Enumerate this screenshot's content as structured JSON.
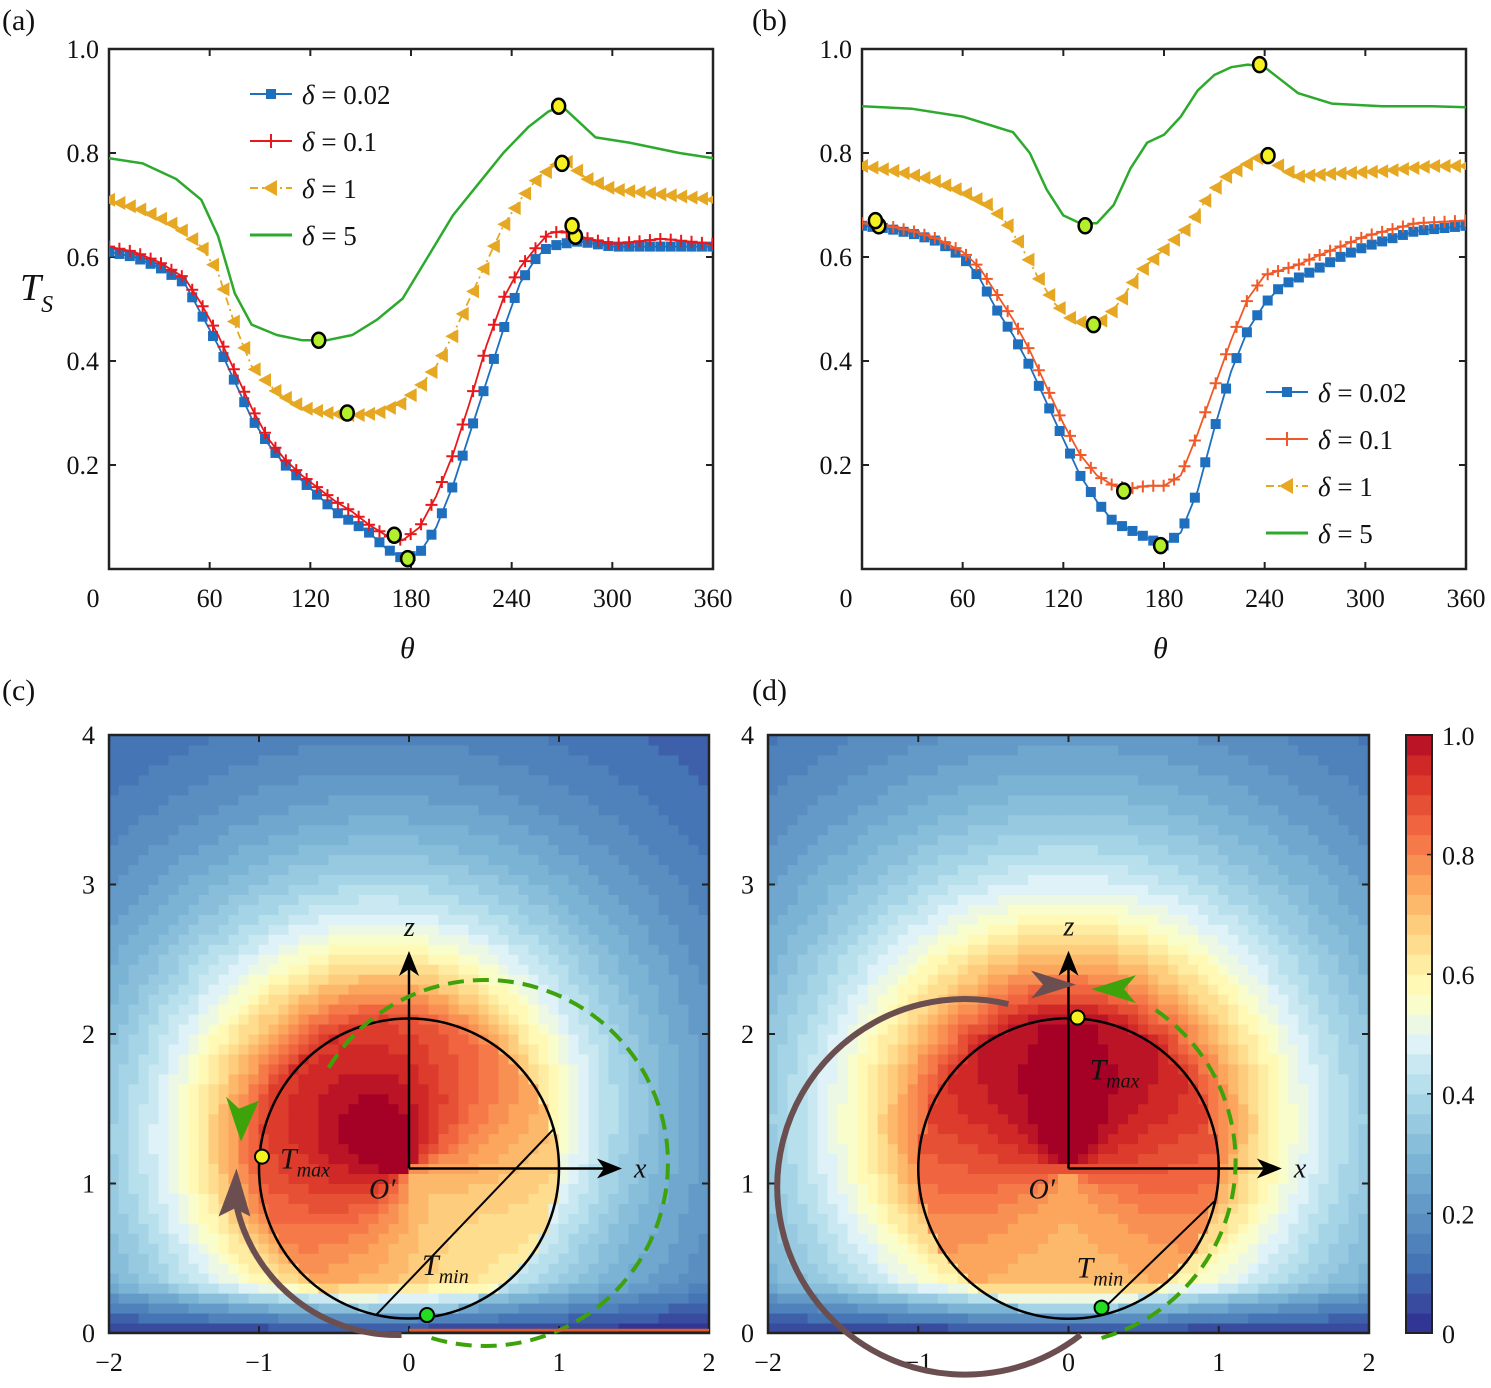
{
  "chart_data": [
    {
      "panel": "(a)",
      "type": "line",
      "xlabel": "θ",
      "ylabel": "T_S",
      "xlim": [
        0,
        360
      ],
      "ylim": [
        0,
        1.0
      ],
      "xticks": [
        "0",
        "60",
        "120",
        "180",
        "240",
        "300",
        "360"
      ],
      "yticks": [
        "0.2",
        "0.4",
        "0.6",
        "0.8",
        "1.0"
      ],
      "legend_position": "top-left",
      "series": [
        {
          "name": "δ = 0.02",
          "color": "#1f6fbf",
          "marker": "square",
          "style": "solid",
          "x": [
            0,
            15,
            30,
            45,
            55,
            65,
            75,
            85,
            95,
            105,
            115,
            125,
            135,
            145,
            155,
            165,
            175,
            185,
            195,
            205,
            215,
            225,
            235,
            245,
            255,
            262,
            270,
            280,
            300,
            330,
            360
          ],
          "y": [
            0.61,
            0.6,
            0.58,
            0.55,
            0.49,
            0.43,
            0.36,
            0.29,
            0.24,
            0.2,
            0.17,
            0.14,
            0.11,
            0.09,
            0.07,
            0.04,
            0.02,
            0.03,
            0.08,
            0.16,
            0.26,
            0.36,
            0.46,
            0.55,
            0.6,
            0.62,
            0.625,
            0.63,
            0.62,
            0.62,
            0.62
          ],
          "highlight": [
            {
              "x": 178,
              "y": 0.02
            },
            {
              "x": 278,
              "y": 0.64
            }
          ]
        },
        {
          "name": "δ = 0.1",
          "color": "#e8191c",
          "marker": "plus",
          "style": "solid",
          "x": [
            0,
            15,
            30,
            45,
            55,
            65,
            75,
            85,
            95,
            105,
            115,
            125,
            135,
            145,
            155,
            165,
            175,
            185,
            195,
            205,
            215,
            225,
            235,
            245,
            255,
            262,
            270,
            280,
            300,
            330,
            360
          ],
          "y": [
            0.62,
            0.61,
            0.59,
            0.56,
            0.51,
            0.45,
            0.38,
            0.31,
            0.25,
            0.21,
            0.18,
            0.155,
            0.13,
            0.11,
            0.085,
            0.065,
            0.055,
            0.08,
            0.14,
            0.22,
            0.32,
            0.43,
            0.52,
            0.58,
            0.62,
            0.645,
            0.65,
            0.64,
            0.625,
            0.635,
            0.625
          ],
          "highlight": [
            {
              "x": 170,
              "y": 0.065
            },
            {
              "x": 276,
              "y": 0.66
            }
          ]
        },
        {
          "name": "δ = 1",
          "color": "#e6a823",
          "marker": "triangle-left",
          "style": "dashdot",
          "x": [
            0,
            20,
            40,
            55,
            65,
            75,
            85,
            100,
            115,
            130,
            145,
            160,
            175,
            185,
            195,
            205,
            215,
            225,
            235,
            245,
            255,
            265,
            272,
            285,
            300,
            330,
            360
          ],
          "y": [
            0.71,
            0.69,
            0.66,
            0.62,
            0.57,
            0.47,
            0.39,
            0.34,
            0.31,
            0.3,
            0.295,
            0.3,
            0.32,
            0.35,
            0.39,
            0.45,
            0.52,
            0.59,
            0.66,
            0.71,
            0.75,
            0.775,
            0.785,
            0.75,
            0.73,
            0.72,
            0.71
          ],
          "highlight": [
            {
              "x": 142,
              "y": 0.3
            },
            {
              "x": 270,
              "y": 0.78
            }
          ]
        },
        {
          "name": "δ = 5",
          "color": "#2daa2d",
          "marker": "none",
          "style": "solid",
          "x": [
            0,
            20,
            40,
            55,
            65,
            75,
            85,
            100,
            115,
            130,
            145,
            160,
            175,
            190,
            205,
            220,
            235,
            250,
            262,
            270,
            280,
            290,
            310,
            340,
            360
          ],
          "y": [
            0.79,
            0.78,
            0.75,
            0.71,
            0.64,
            0.53,
            0.47,
            0.45,
            0.44,
            0.44,
            0.45,
            0.48,
            0.52,
            0.6,
            0.68,
            0.74,
            0.8,
            0.85,
            0.88,
            0.89,
            0.86,
            0.83,
            0.82,
            0.8,
            0.79
          ],
          "highlight": [
            {
              "x": 125,
              "y": 0.44
            },
            {
              "x": 268,
              "y": 0.89
            }
          ]
        }
      ]
    },
    {
      "panel": "(b)",
      "type": "line",
      "xlabel": "θ",
      "xlim": [
        0,
        360
      ],
      "ylim": [
        0,
        1.0
      ],
      "xticks": [
        "0",
        "60",
        "120",
        "180",
        "240",
        "300",
        "360"
      ],
      "yticks": [
        "0.2",
        "0.4",
        "0.6",
        "0.8",
        "1.0"
      ],
      "legend_position": "bottom-right",
      "series": [
        {
          "name": "δ = 0.02",
          "color": "#1f6fbf",
          "marker": "square",
          "style": "solid",
          "x": [
            0,
            15,
            30,
            45,
            60,
            70,
            80,
            90,
            100,
            110,
            120,
            130,
            140,
            150,
            160,
            170,
            180,
            190,
            200,
            210,
            220,
            230,
            240,
            250,
            260,
            270,
            285,
            300,
            330,
            360
          ],
          "y": [
            0.66,
            0.655,
            0.645,
            0.63,
            0.6,
            0.56,
            0.5,
            0.45,
            0.39,
            0.32,
            0.25,
            0.18,
            0.13,
            0.09,
            0.075,
            0.06,
            0.045,
            0.07,
            0.15,
            0.27,
            0.38,
            0.46,
            0.51,
            0.545,
            0.56,
            0.575,
            0.6,
            0.62,
            0.65,
            0.66
          ],
          "highlight": [
            {
              "x": 10,
              "y": 0.66
            },
            {
              "x": 178,
              "y": 0.045
            }
          ]
        },
        {
          "name": "δ = 0.1",
          "color": "#f05a28",
          "marker": "plus",
          "style": "solid",
          "x": [
            0,
            15,
            30,
            45,
            60,
            70,
            80,
            90,
            100,
            110,
            120,
            130,
            140,
            150,
            160,
            170,
            180,
            190,
            200,
            210,
            220,
            230,
            240,
            250,
            260,
            270,
            285,
            300,
            330,
            360
          ],
          "y": [
            0.665,
            0.66,
            0.65,
            0.635,
            0.61,
            0.58,
            0.53,
            0.48,
            0.42,
            0.35,
            0.28,
            0.22,
            0.18,
            0.16,
            0.155,
            0.16,
            0.16,
            0.18,
            0.26,
            0.35,
            0.44,
            0.52,
            0.565,
            0.575,
            0.585,
            0.6,
            0.62,
            0.64,
            0.665,
            0.67
          ],
          "highlight": [
            {
              "x": 8,
              "y": 0.67
            },
            {
              "x": 156,
              "y": 0.15
            }
          ]
        },
        {
          "name": "δ = 1",
          "color": "#e6a823",
          "marker": "triangle-left",
          "style": "dashdot",
          "x": [
            0,
            20,
            40,
            60,
            75,
            85,
            95,
            105,
            115,
            125,
            135,
            145,
            155,
            165,
            175,
            185,
            195,
            205,
            215,
            225,
            235,
            242,
            250,
            260,
            280,
            310,
            340,
            360
          ],
          "y": [
            0.775,
            0.765,
            0.75,
            0.725,
            0.7,
            0.67,
            0.62,
            0.56,
            0.51,
            0.48,
            0.47,
            0.48,
            0.52,
            0.57,
            0.6,
            0.63,
            0.66,
            0.71,
            0.75,
            0.77,
            0.79,
            0.795,
            0.77,
            0.755,
            0.76,
            0.765,
            0.775,
            0.775
          ],
          "highlight": [
            {
              "x": 138,
              "y": 0.47
            },
            {
              "x": 242,
              "y": 0.795
            }
          ]
        },
        {
          "name": "δ = 5",
          "color": "#2daa2d",
          "marker": "none",
          "style": "solid",
          "x": [
            0,
            30,
            60,
            80,
            90,
            100,
            110,
            120,
            130,
            140,
            150,
            160,
            170,
            180,
            190,
            200,
            210,
            220,
            230,
            240,
            250,
            260,
            280,
            310,
            340,
            360
          ],
          "y": [
            0.89,
            0.885,
            0.87,
            0.85,
            0.84,
            0.8,
            0.73,
            0.68,
            0.665,
            0.665,
            0.7,
            0.77,
            0.82,
            0.835,
            0.87,
            0.92,
            0.95,
            0.965,
            0.97,
            0.965,
            0.94,
            0.915,
            0.895,
            0.89,
            0.89,
            0.888
          ],
          "highlight": [
            {
              "x": 133,
              "y": 0.66
            },
            {
              "x": 237,
              "y": 0.97
            }
          ]
        }
      ]
    },
    {
      "panel": "(c)",
      "type": "heatmap",
      "xlim": [
        -2,
        2
      ],
      "ylim": [
        0,
        4
      ],
      "xticks": [
        "−2",
        "−1",
        "0",
        "1",
        "2"
      ],
      "yticks": [
        "0",
        "1",
        "2",
        "3",
        "4"
      ],
      "circle_center": [
        0,
        1.1
      ],
      "circle_radius": 1.0,
      "annotations": [
        "z",
        "x",
        "O′",
        "T_max",
        "T_min"
      ],
      "tmax_point": [
        -0.98,
        1.18
      ],
      "tmin_point": [
        0.12,
        0.12
      ],
      "hotspot_direction": "upper-left"
    },
    {
      "panel": "(d)",
      "type": "heatmap",
      "xlim": [
        -2,
        2
      ],
      "ylim": [
        0,
        4
      ],
      "xticks": [
        "−2",
        "−1",
        "0",
        "1",
        "2"
      ],
      "yticks": [
        "0",
        "1",
        "2",
        "3",
        "4"
      ],
      "circle_center": [
        0,
        1.1
      ],
      "circle_radius": 1.0,
      "annotations": [
        "z",
        "x",
        "O′",
        "T_max",
        "T_min"
      ],
      "tmax_point": [
        0.06,
        2.11
      ],
      "tmin_point": [
        0.22,
        0.17
      ],
      "hotspot_direction": "top",
      "colorbar": {
        "min": 0,
        "max": 1.0,
        "ticks": [
          "0",
          "0.2",
          "0.4",
          "0.6",
          "0.8",
          "1.0"
        ],
        "colormap": "RdYlBu_r"
      }
    }
  ],
  "labels": {
    "panel_a": "(a)",
    "panel_b": "(b)",
    "panel_c": "(c)",
    "panel_d": "(d)",
    "theta": "θ",
    "ts_main": "T",
    "ts_sub": "S",
    "z": "z",
    "x": "x",
    "origin": "O′",
    "tmax_main": "T",
    "tmax_sub": "max",
    "tmin_main": "T",
    "tmin_sub": "min"
  }
}
